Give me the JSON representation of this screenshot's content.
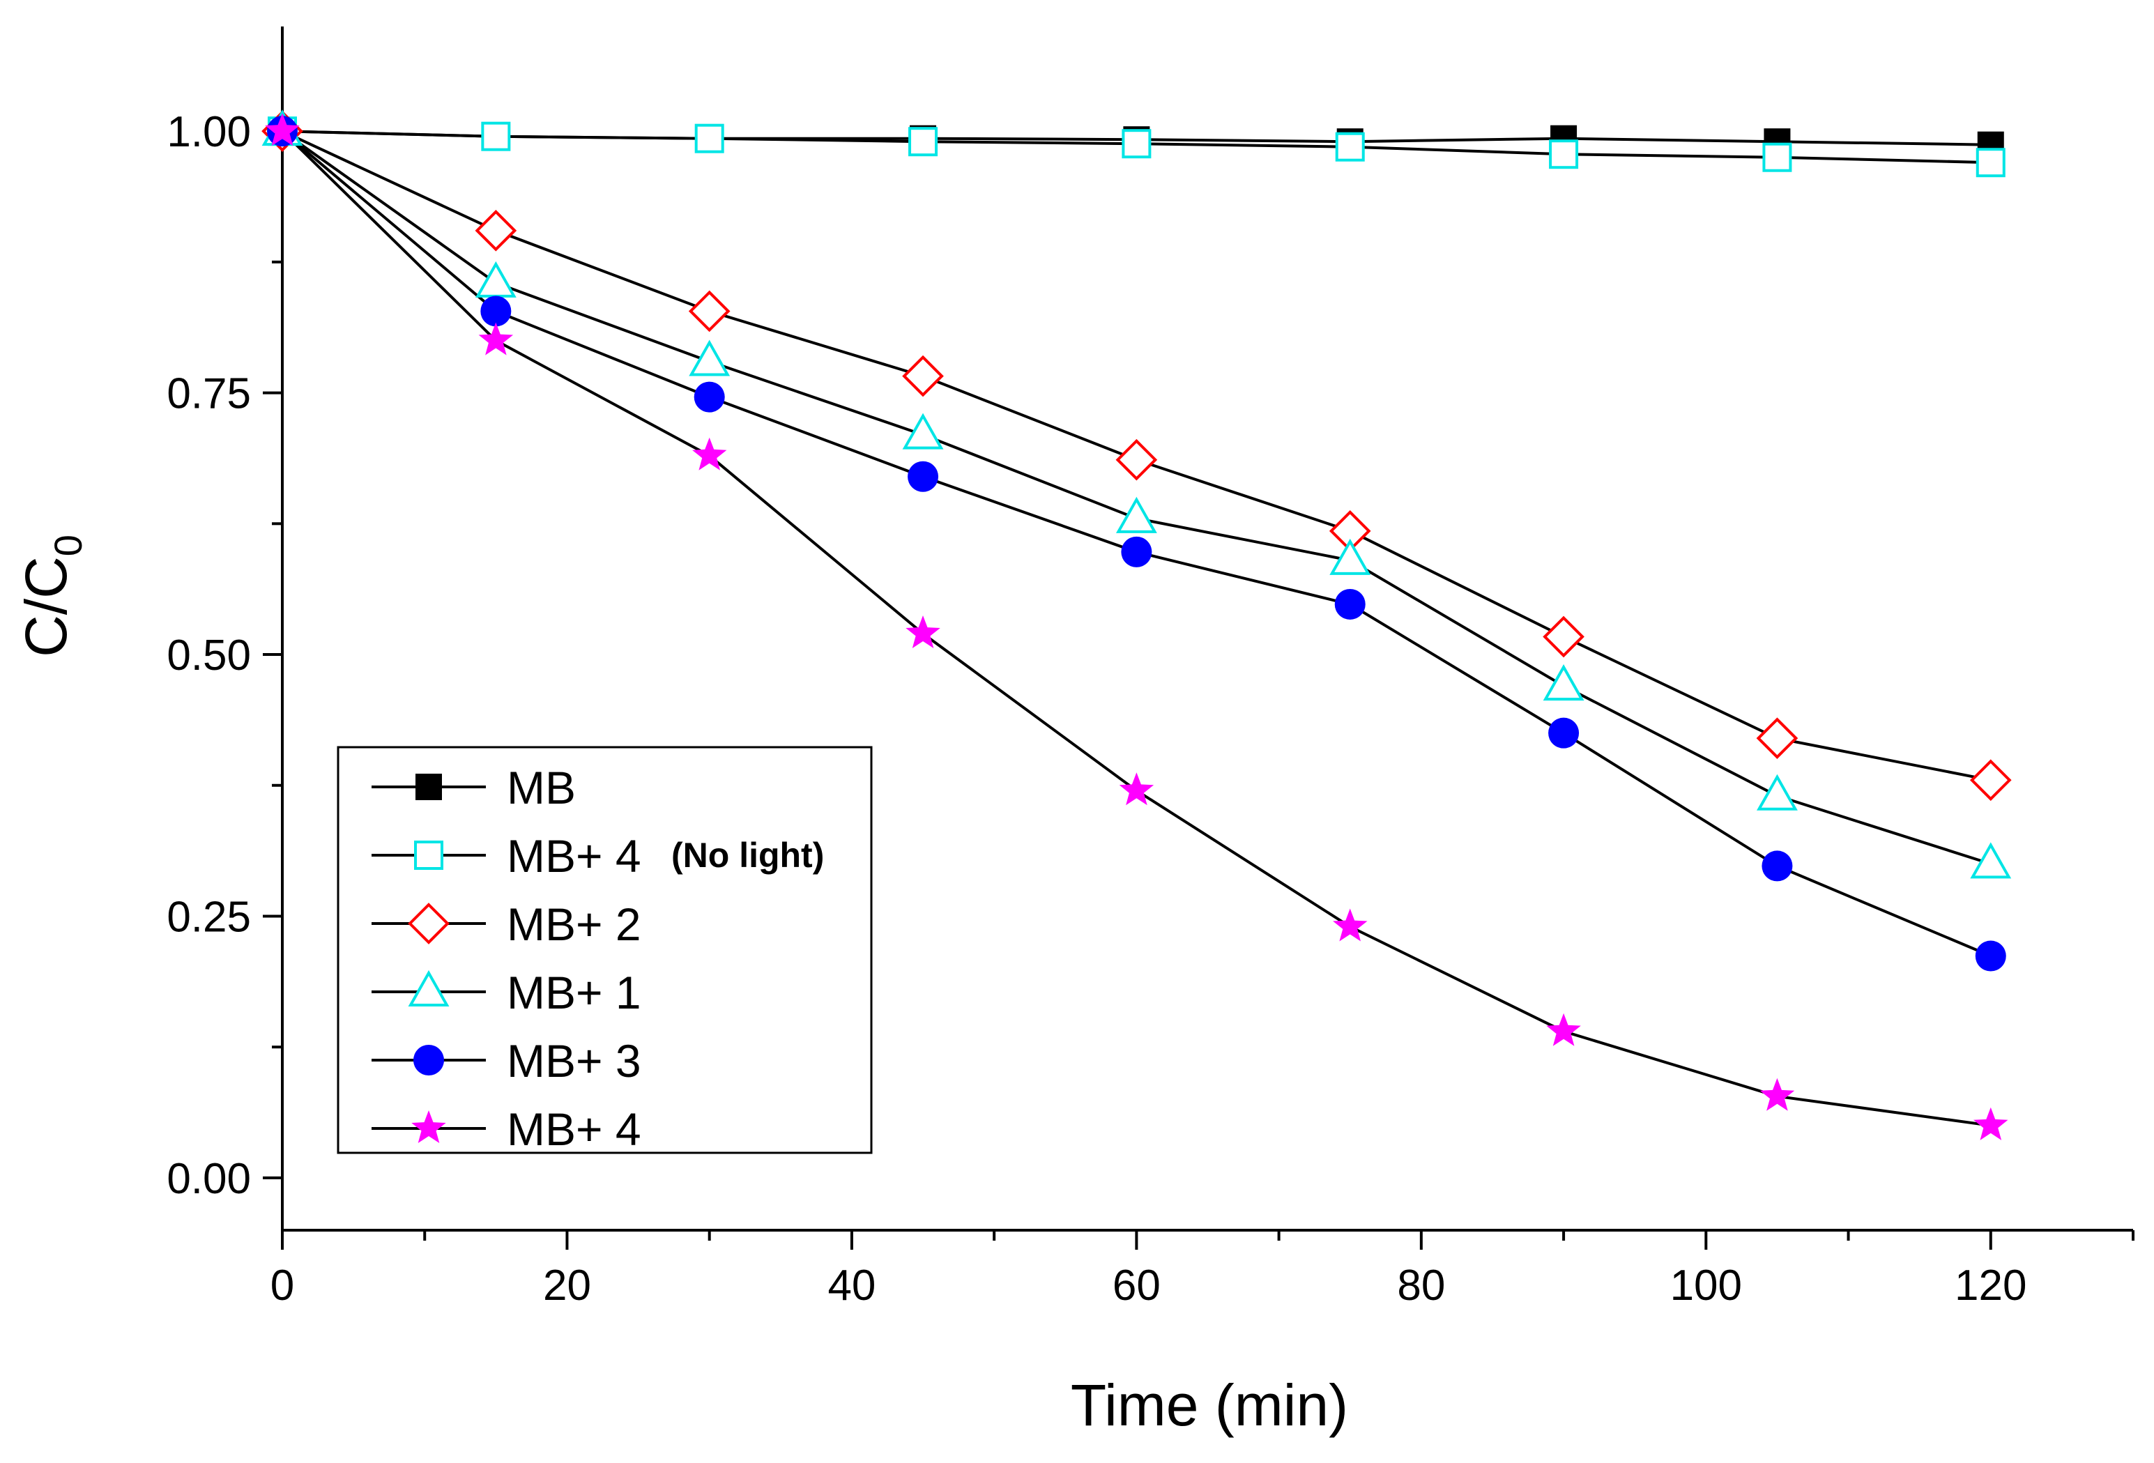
{
  "chart_data": {
    "type": "line",
    "title": "",
    "xlabel": "Time (min)",
    "ylabel": "C/C",
    "ylabel_subscript": "0",
    "xlim": [
      0,
      130
    ],
    "ylim": [
      -0.05,
      1.1
    ],
    "xticks": [
      0,
      20,
      40,
      60,
      80,
      100,
      120
    ],
    "xtick_labels": [
      "0",
      "20",
      "40",
      "60",
      "80",
      "100",
      "120"
    ],
    "xminor": [
      10,
      30,
      50,
      70,
      90,
      110,
      130
    ],
    "yticks": [
      0,
      0.25,
      0.5,
      0.75,
      1.0
    ],
    "ytick_labels": [
      "0.00",
      "0.25",
      "0.50",
      "0.75",
      "1.00"
    ],
    "yminor": [
      0.125,
      0.375,
      0.625,
      0.875
    ],
    "grid": false,
    "legend_position": "lower-left",
    "x": [
      0,
      15,
      30,
      45,
      60,
      75,
      90,
      105,
      120
    ],
    "series": [
      {
        "name": "MB",
        "note": "",
        "marker": "square-filled",
        "color": "#000000",
        "values": [
          1.0,
          0.995,
          0.993,
          0.993,
          0.992,
          0.99,
          0.993,
          0.99,
          0.987
        ]
      },
      {
        "name": "MB+ 4",
        "note": "(No light)",
        "marker": "square-open",
        "color": "#00E5E5",
        "values": [
          1.0,
          0.995,
          0.993,
          0.99,
          0.988,
          0.985,
          0.978,
          0.975,
          0.97
        ]
      },
      {
        "name": "MB+ 2",
        "note": "",
        "marker": "diamond-open",
        "color": "#FF0000",
        "values": [
          1.0,
          0.905,
          0.828,
          0.766,
          0.686,
          0.618,
          0.517,
          0.42,
          0.38
        ]
      },
      {
        "name": "MB+ 1",
        "note": "",
        "marker": "triangle-open",
        "color": "#00E5E5",
        "values": [
          1.0,
          0.855,
          0.78,
          0.71,
          0.63,
          0.59,
          0.47,
          0.365,
          0.3
        ]
      },
      {
        "name": "MB+ 3",
        "note": "",
        "marker": "circle-filled",
        "color": "#0000FF",
        "values": [
          1.0,
          0.828,
          0.746,
          0.67,
          0.598,
          0.548,
          0.425,
          0.298,
          0.212
        ]
      },
      {
        "name": "MB+ 4",
        "note": "",
        "marker": "star-filled",
        "color": "#FF00FF",
        "values": [
          1.0,
          0.8,
          0.69,
          0.52,
          0.37,
          0.24,
          0.14,
          0.078,
          0.05
        ]
      }
    ]
  }
}
